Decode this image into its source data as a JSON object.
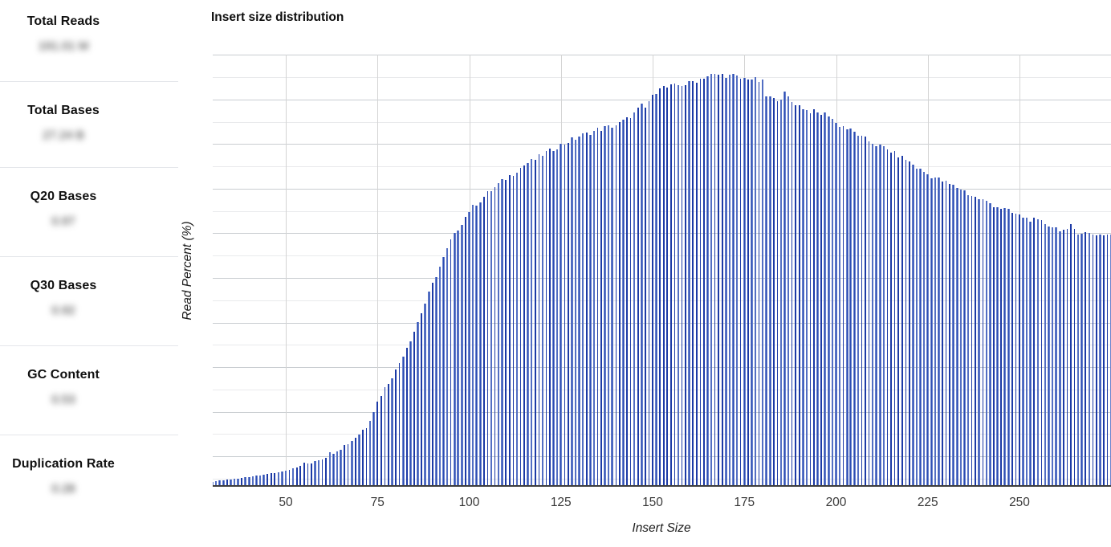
{
  "sidebar": {
    "stats": [
      {
        "label": "Total Reads",
        "value": "191.01 M",
        "blurred": true
      },
      {
        "label": "Total Bases",
        "value": "27.24 B",
        "blurred": true
      },
      {
        "label": "Q20 Bases",
        "value": "0.97",
        "blurred": true
      },
      {
        "label": "Q30 Bases",
        "value": "0.92",
        "blurred": true
      },
      {
        "label": "GC Content",
        "value": "0.53",
        "blurred": true
      },
      {
        "label": "Duplication Rate",
        "value": "0.28",
        "blurred": true
      }
    ]
  },
  "chart": {
    "title": "Insert size distribution",
    "xlabel": "Insert Size",
    "ylabel": "Read Percent (%)"
  },
  "chart_data": {
    "type": "bar",
    "title": "Insert size distribution",
    "xlabel": "Insert Size",
    "ylabel": "Read Percent (%)",
    "x_ticks": [
      50,
      75,
      100,
      125,
      150,
      175,
      200,
      225,
      250
    ],
    "x_range_visible": [
      30,
      276
    ],
    "ylim": [
      0,
      1
    ],
    "y_ticks_labeled": false,
    "grid": true,
    "legend": "none",
    "bar_color": "#2c4cb3",
    "bar_color_dark": "#1c3aa6",
    "envelope_points": [
      [
        30,
        0.012
      ],
      [
        32,
        0.014
      ],
      [
        36,
        0.018
      ],
      [
        40,
        0.023
      ],
      [
        44,
        0.028
      ],
      [
        48,
        0.034
      ],
      [
        52,
        0.042
      ],
      [
        56,
        0.054
      ],
      [
        60,
        0.068
      ],
      [
        64,
        0.086
      ],
      [
        68,
        0.107
      ],
      [
        72,
        0.14
      ],
      [
        76,
        0.215
      ],
      [
        80,
        0.27
      ],
      [
        85,
        0.36
      ],
      [
        90,
        0.47
      ],
      [
        95,
        0.57
      ],
      [
        100,
        0.64
      ],
      [
        105,
        0.68
      ],
      [
        110,
        0.715
      ],
      [
        115,
        0.745
      ],
      [
        120,
        0.77
      ],
      [
        125,
        0.792
      ],
      [
        130,
        0.812
      ],
      [
        135,
        0.828
      ],
      [
        140,
        0.838
      ],
      [
        143,
        0.852
      ],
      [
        145,
        0.866
      ],
      [
        147,
        0.884
      ],
      [
        148,
        0.877
      ],
      [
        149,
        0.895
      ],
      [
        150,
        0.903
      ],
      [
        151,
        0.917
      ],
      [
        152,
        0.928
      ],
      [
        154,
        0.926
      ],
      [
        156,
        0.929
      ],
      [
        158,
        0.932
      ],
      [
        160,
        0.936
      ],
      [
        162,
        0.942
      ],
      [
        164,
        0.95
      ],
      [
        166,
        0.955
      ],
      [
        168,
        0.955
      ],
      [
        170,
        0.954
      ],
      [
        172,
        0.952
      ],
      [
        174,
        0.946
      ],
      [
        176,
        0.948
      ],
      [
        178,
        0.944
      ],
      [
        180,
        0.938
      ],
      [
        181,
        0.906
      ],
      [
        183,
        0.898
      ],
      [
        185,
        0.902
      ],
      [
        186,
        0.912
      ],
      [
        188,
        0.893
      ],
      [
        190,
        0.884
      ],
      [
        192,
        0.873
      ],
      [
        195,
        0.867
      ],
      [
        198,
        0.862
      ],
      [
        200,
        0.843
      ],
      [
        204,
        0.827
      ],
      [
        207,
        0.81
      ],
      [
        211,
        0.793
      ],
      [
        215,
        0.778
      ],
      [
        219,
        0.759
      ],
      [
        222,
        0.74
      ],
      [
        226,
        0.72
      ],
      [
        230,
        0.706
      ],
      [
        234,
        0.69
      ],
      [
        237,
        0.675
      ],
      [
        241,
        0.66
      ],
      [
        245,
        0.647
      ],
      [
        248,
        0.635
      ],
      [
        252,
        0.622
      ],
      [
        256,
        0.613
      ],
      [
        260,
        0.6
      ],
      [
        263,
        0.592
      ],
      [
        264,
        0.604
      ],
      [
        266,
        0.59
      ],
      [
        268,
        0.588
      ],
      [
        271,
        0.585
      ],
      [
        275,
        0.585
      ],
      [
        276,
        0.582
      ]
    ]
  },
  "colors": {
    "background": "#ffffff",
    "grid_major": "#c9cdd1",
    "grid_minor": "#e9eaec",
    "axis_line": "#3d3d3d",
    "tick_label": "#3a3a3a",
    "divider": "#e4e6ea"
  }
}
